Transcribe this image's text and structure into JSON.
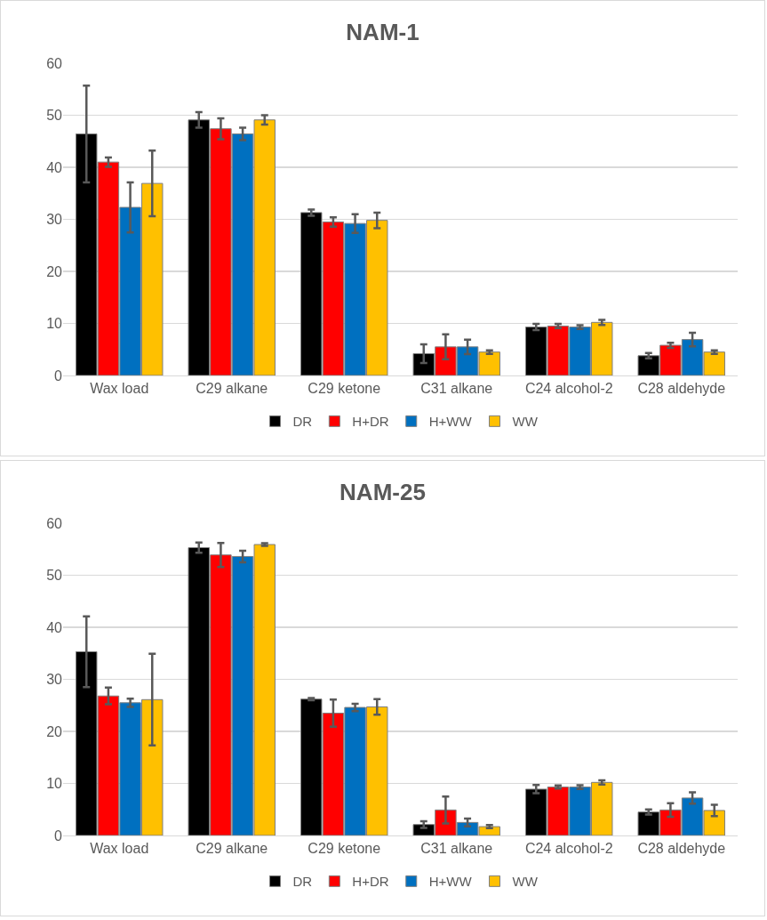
{
  "chart_data": [
    {
      "type": "bar",
      "title": "NAM-1",
      "categories": [
        "Wax load",
        "C29 alkane",
        "C29 ketone",
        "C31 alkane",
        "C24 alcohol-2",
        "C28 aldehyde"
      ],
      "ylim": [
        0,
        60
      ],
      "yticks": [
        0,
        10,
        20,
        30,
        40,
        50,
        60
      ],
      "grid": "y",
      "legend": "bottom",
      "series": [
        {
          "name": "DR",
          "color": "#000000",
          "values": [
            46.4,
            49.1,
            31.3,
            4.2,
            9.3,
            3.8
          ],
          "errors": [
            9.3,
            1.5,
            0.6,
            1.8,
            0.6,
            0.5
          ]
        },
        {
          "name": "H+DR",
          "color": "#ff0000",
          "values": [
            41.0,
            47.4,
            29.5,
            5.5,
            9.5,
            5.8
          ],
          "errors": [
            0.9,
            2.0,
            0.9,
            2.4,
            0.4,
            0.5
          ]
        },
        {
          "name": "H+WW",
          "color": "#0070c0",
          "values": [
            32.3,
            46.4,
            29.2,
            5.5,
            9.3,
            6.9
          ],
          "errors": [
            4.8,
            1.2,
            1.8,
            1.4,
            0.35,
            1.3
          ]
        },
        {
          "name": "WW",
          "color": "#ffc000",
          "values": [
            36.9,
            49.1,
            29.8,
            4.5,
            10.2,
            4.5
          ],
          "errors": [
            6.3,
            0.9,
            1.5,
            0.35,
            0.5,
            0.35
          ]
        }
      ]
    },
    {
      "type": "bar",
      "title": "NAM-25",
      "categories": [
        "Wax load",
        "C29 alkane",
        "C29 ketone",
        "C31 alkane",
        "C24 alcohol-2",
        "C28 aldehyde"
      ],
      "ylim": [
        0,
        60
      ],
      "yticks": [
        0,
        10,
        20,
        30,
        40,
        50,
        60
      ],
      "grid": "y",
      "legend": "bottom",
      "series": [
        {
          "name": "DR",
          "color": "#000000",
          "values": [
            35.3,
            55.3,
            26.2,
            2.1,
            8.9,
            4.5
          ],
          "errors": [
            6.8,
            1.0,
            0.2,
            0.65,
            0.8,
            0.5
          ]
        },
        {
          "name": "H+DR",
          "color": "#ff0000",
          "values": [
            26.8,
            53.9,
            23.5,
            4.9,
            9.3,
            4.9
          ],
          "errors": [
            1.6,
            2.3,
            2.6,
            2.6,
            0.3,
            1.3
          ]
        },
        {
          "name": "H+WW",
          "color": "#0070c0",
          "values": [
            25.5,
            53.6,
            24.6,
            2.5,
            9.3,
            7.2
          ],
          "errors": [
            0.8,
            1.1,
            0.7,
            0.75,
            0.35,
            1.1
          ]
        },
        {
          "name": "WW",
          "color": "#ffc000",
          "values": [
            26.1,
            55.9,
            24.7,
            1.7,
            10.2,
            4.8
          ],
          "errors": [
            8.8,
            0.25,
            1.5,
            0.3,
            0.4,
            1.1
          ]
        }
      ]
    }
  ]
}
